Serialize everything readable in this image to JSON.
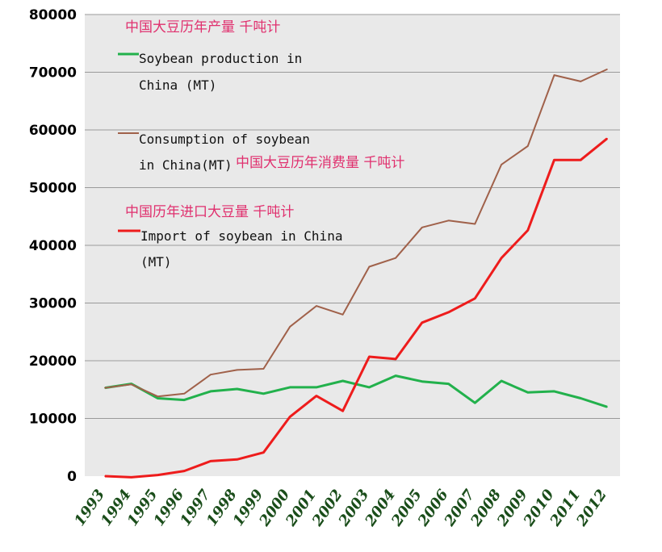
{
  "chart_data": {
    "type": "line",
    "categories": [
      "1993",
      "1994",
      "1995",
      "1996",
      "1997",
      "1998",
      "1999",
      "2000",
      "2001",
      "2002",
      "2003",
      "2004",
      "2005",
      "2006",
      "2007",
      "2008",
      "2009",
      "2010",
      "2011",
      "2012"
    ],
    "yticks": [
      "0",
      "10000",
      "20000",
      "30000",
      "40000",
      "50000",
      "60000",
      "70000",
      "80000"
    ],
    "ylim": [
      0,
      80000
    ],
    "grid": true,
    "series": [
      {
        "key": "production",
        "color": "#22b14c",
        "values": [
          15300,
          16000,
          13500,
          13200,
          14700,
          15100,
          14300,
          15400,
          15400,
          16500,
          15400,
          17400,
          16400,
          16000,
          12700,
          16500,
          14500,
          14700,
          13500,
          12000
        ]
      },
      {
        "key": "consumption",
        "color": "#a0614a",
        "values": [
          15300,
          15900,
          13800,
          14300,
          17600,
          18400,
          18600,
          25900,
          29500,
          28000,
          36300,
          37800,
          43100,
          44300,
          43700,
          54000,
          57200,
          69500,
          68400,
          70500
        ]
      },
      {
        "key": "import",
        "color": "#ee1c1c",
        "values": [
          0,
          -200,
          200,
          900,
          2600,
          2900,
          4100,
          10300,
          13900,
          11300,
          20700,
          20300,
          26600,
          28400,
          30800,
          37800,
          42600,
          54800,
          54800,
          58500
        ]
      }
    ],
    "annotations": {
      "title_cn": "中国大豆历年产量 千吨计",
      "production_en_1": "Soybean production in",
      "production_en_2": "China (MT)",
      "consumption_en_1": "Consumption of soybean",
      "consumption_en_2": "in China(MT)",
      "consumption_cn": "中国大豆历年消费量 千吨计",
      "import_cn": "中国历年进口大豆量 千吨计",
      "import_en_1": "Import of soybean in China",
      "import_en_2": "(MT)"
    },
    "colors": {
      "plot_background": "#e9e9e9",
      "gridline": "#9a9a9a",
      "annotation_cn": "#e0306e"
    }
  }
}
